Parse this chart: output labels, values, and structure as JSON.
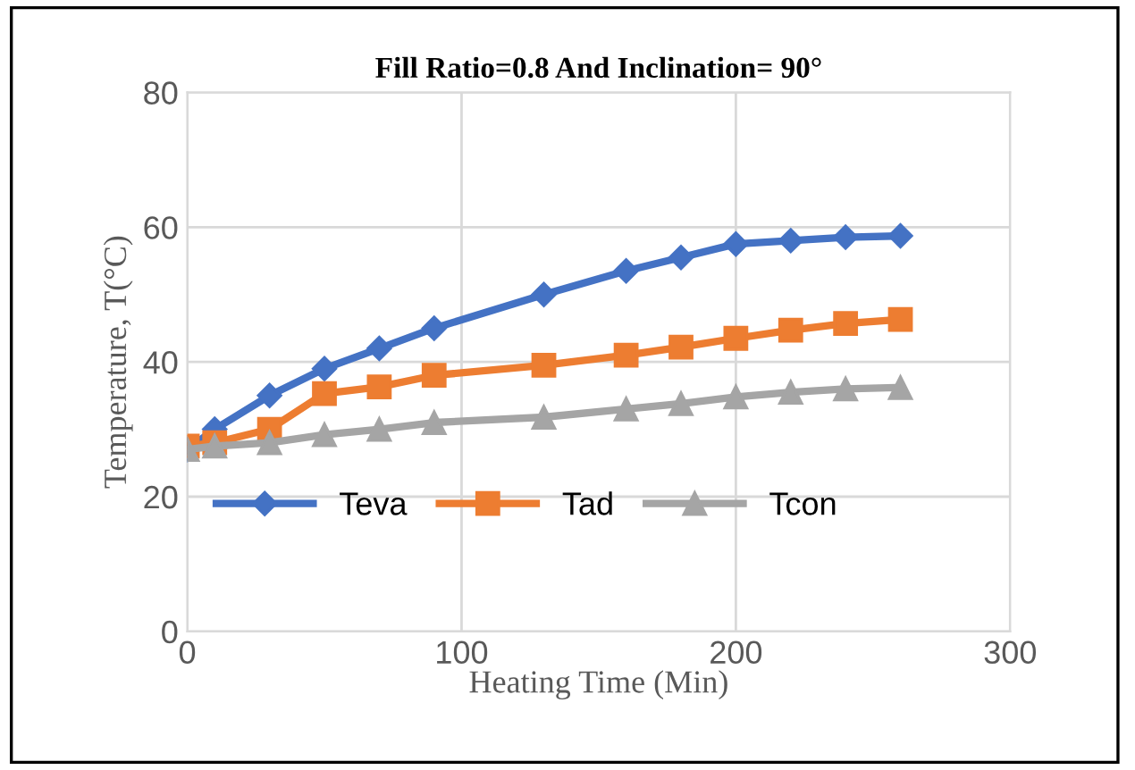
{
  "chart_data": {
    "type": "line",
    "title": "Fill Ratio=0.8 And Inclination= 90°",
    "xlabel": "Heating Time (Min)",
    "ylabel": "Temperature, T(°C)",
    "x": [
      0,
      10,
      30,
      50,
      70,
      90,
      130,
      160,
      180,
      200,
      220,
      240,
      260
    ],
    "series": [
      {
        "name": "Teva",
        "color": "#4472c4",
        "marker": "diamond",
        "values": [
          27,
          30,
          35,
          39,
          42,
          45,
          50,
          53.5,
          55.5,
          57.5,
          58,
          58.5,
          58.7
        ]
      },
      {
        "name": "Tad",
        "color": "#ed7d31",
        "marker": "square",
        "values": [
          27.5,
          28,
          30,
          35.3,
          36.3,
          38,
          39.5,
          41,
          42.2,
          43.5,
          44.7,
          45.7,
          46.3
        ]
      },
      {
        "name": "Tcon",
        "color": "#a5a5a5",
        "marker": "triangle",
        "values": [
          27,
          27.5,
          28,
          29.2,
          30,
          31,
          31.8,
          33,
          33.8,
          34.8,
          35.5,
          36,
          36.2
        ]
      }
    ],
    "xlim": [
      0,
      300
    ],
    "xticks": [
      0,
      100,
      200,
      300
    ],
    "ylim": [
      0,
      80
    ],
    "yticks": [
      0,
      20,
      40,
      60,
      80
    ],
    "grid": true,
    "legend": "bottom left",
    "line_style": "solid"
  }
}
